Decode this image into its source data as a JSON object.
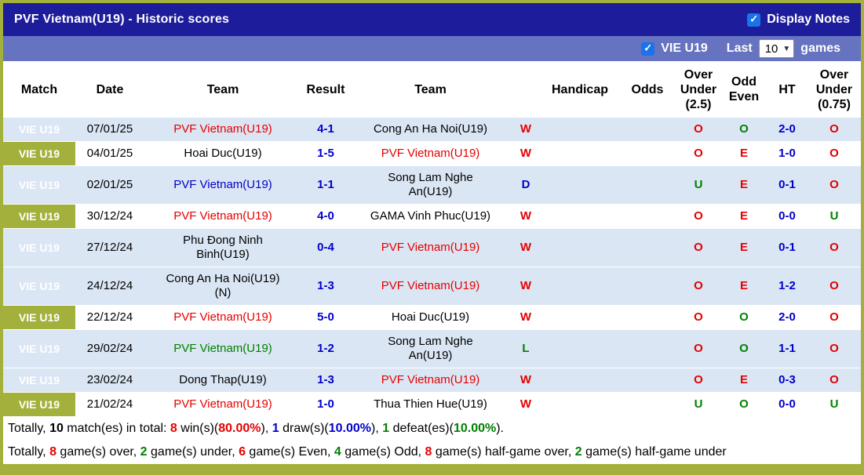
{
  "colors": {
    "frame_green": "#a3b13c",
    "title_bar_bg": "#1d1d9b",
    "filter_bar_bg": "#6673c0",
    "row_shade": "#dbe6f4",
    "match_cell_green": "#a3b13c",
    "result_red": "#e60000",
    "result_blue": "#0000cc",
    "result_green": "#008000",
    "checkbox_blue": "#1a73e8"
  },
  "title_bar": {
    "title": "PVF Vietnam(U19) - Historic scores",
    "display_notes_label": "Display Notes",
    "display_notes_checked": true
  },
  "filter_bar": {
    "league_label": "VIE U19",
    "league_checked": true,
    "last_label": "Last",
    "games_count": "10",
    "games_label": "games"
  },
  "table": {
    "headers": [
      "Match",
      "Date",
      "Team",
      "Result",
      "Team",
      "",
      "Handicap",
      "Odds",
      "Over\nUnder\n(2.5)",
      "Odd\nEven",
      "HT",
      "Over\nUnder\n(0.75)"
    ],
    "rows": [
      {
        "league": "VIE U19",
        "date": "07/01/25",
        "home": "PVF Vietnam(U19)",
        "home_color": "red",
        "result": "4-1",
        "away": "Cong An Ha Noi(U19)",
        "away_color": "black",
        "wdl": "W",
        "wdl_color": "red",
        "handicap": "",
        "odds": "",
        "ou25": "O",
        "ou25_color": "red",
        "oe": "O",
        "oe_color": "green",
        "ht": "2-0",
        "ou075": "O",
        "ou075_color": "red",
        "shaded": true
      },
      {
        "league": "VIE U19",
        "date": "04/01/25",
        "home": "Hoai Duc(U19)",
        "home_color": "black",
        "result": "1-5",
        "away": "PVF Vietnam(U19)",
        "away_color": "red",
        "wdl": "W",
        "wdl_color": "red",
        "handicap": "",
        "odds": "",
        "ou25": "O",
        "ou25_color": "red",
        "oe": "E",
        "oe_color": "red",
        "ht": "1-0",
        "ou075": "O",
        "ou075_color": "red",
        "shaded": false
      },
      {
        "league": "VIE U19",
        "date": "02/01/25",
        "home": "PVF Vietnam(U19)",
        "home_color": "blue",
        "result": "1-1",
        "away": "Song Lam Nghe An(U19)",
        "away_color": "black",
        "wdl": "D",
        "wdl_color": "blue",
        "handicap": "",
        "odds": "",
        "ou25": "U",
        "ou25_color": "green",
        "oe": "E",
        "oe_color": "red",
        "ht": "0-1",
        "ou075": "O",
        "ou075_color": "red",
        "shaded": true
      },
      {
        "league": "VIE U19",
        "date": "30/12/24",
        "home": "PVF Vietnam(U19)",
        "home_color": "red",
        "result": "4-0",
        "away": "GAMA Vinh Phuc(U19)",
        "away_color": "black",
        "wdl": "W",
        "wdl_color": "red",
        "handicap": "",
        "odds": "",
        "ou25": "O",
        "ou25_color": "red",
        "oe": "E",
        "oe_color": "red",
        "ht": "0-0",
        "ou075": "U",
        "ou075_color": "green",
        "shaded": false
      },
      {
        "league": "VIE U19",
        "date": "27/12/24",
        "home": "Phu Đong Ninh Binh(U19)",
        "home_color": "black",
        "result": "0-4",
        "away": "PVF Vietnam(U19)",
        "away_color": "red",
        "wdl": "W",
        "wdl_color": "red",
        "handicap": "",
        "odds": "",
        "ou25": "O",
        "ou25_color": "red",
        "oe": "E",
        "oe_color": "red",
        "ht": "0-1",
        "ou075": "O",
        "ou075_color": "red",
        "shaded": true
      },
      {
        "league": "VIE U19",
        "date": "24/12/24",
        "home": "Cong An Ha Noi(U19) (N)",
        "home_color": "black",
        "result": "1-3",
        "away": "PVF Vietnam(U19)",
        "away_color": "red",
        "wdl": "W",
        "wdl_color": "red",
        "handicap": "",
        "odds": "",
        "ou25": "O",
        "ou25_color": "red",
        "oe": "E",
        "oe_color": "red",
        "ht": "1-2",
        "ou075": "O",
        "ou075_color": "red",
        "shaded": true
      },
      {
        "league": "VIE U19",
        "date": "22/12/24",
        "home": "PVF Vietnam(U19)",
        "home_color": "red",
        "result": "5-0",
        "away": "Hoai Duc(U19)",
        "away_color": "black",
        "wdl": "W",
        "wdl_color": "red",
        "handicap": "",
        "odds": "",
        "ou25": "O",
        "ou25_color": "red",
        "oe": "O",
        "oe_color": "green",
        "ht": "2-0",
        "ou075": "O",
        "ou075_color": "red",
        "shaded": false
      },
      {
        "league": "VIE U19",
        "date": "29/02/24",
        "home": "PVF Vietnam(U19)",
        "home_color": "green",
        "result": "1-2",
        "away": "Song Lam Nghe An(U19)",
        "away_color": "black",
        "wdl": "L",
        "wdl_color": "green",
        "handicap": "",
        "odds": "",
        "ou25": "O",
        "ou25_color": "red",
        "oe": "O",
        "oe_color": "green",
        "ht": "1-1",
        "ou075": "O",
        "ou075_color": "red",
        "shaded": true
      },
      {
        "league": "VIE U19",
        "date": "23/02/24",
        "home": "Dong Thap(U19)",
        "home_color": "black",
        "result": "1-3",
        "away": "PVF Vietnam(U19)",
        "away_color": "red",
        "wdl": "W",
        "wdl_color": "red",
        "handicap": "",
        "odds": "",
        "ou25": "O",
        "ou25_color": "red",
        "oe": "E",
        "oe_color": "red",
        "ht": "0-3",
        "ou075": "O",
        "ou075_color": "red",
        "shaded": true
      },
      {
        "league": "VIE U19",
        "date": "21/02/24",
        "home": "PVF Vietnam(U19)",
        "home_color": "red",
        "result": "1-0",
        "away": "Thua Thien Hue(U19)",
        "away_color": "black",
        "wdl": "W",
        "wdl_color": "red",
        "handicap": "",
        "odds": "",
        "ou25": "U",
        "ou25_color": "green",
        "oe": "O",
        "oe_color": "green",
        "ht": "0-0",
        "ou075": "U",
        "ou075_color": "green",
        "shaded": false
      }
    ]
  },
  "summary": {
    "line1": [
      {
        "text": "Totally, ",
        "color": "black",
        "bold": false
      },
      {
        "text": "10",
        "color": "black",
        "bold": true
      },
      {
        "text": " match(es) in total: ",
        "color": "black",
        "bold": false
      },
      {
        "text": "8",
        "color": "red",
        "bold": true
      },
      {
        "text": " win(s)(",
        "color": "black",
        "bold": false
      },
      {
        "text": "80.00%",
        "color": "red",
        "bold": true
      },
      {
        "text": "), ",
        "color": "black",
        "bold": false
      },
      {
        "text": "1",
        "color": "blue",
        "bold": true
      },
      {
        "text": " draw(s)(",
        "color": "black",
        "bold": false
      },
      {
        "text": "10.00%",
        "color": "blue",
        "bold": true
      },
      {
        "text": "), ",
        "color": "black",
        "bold": false
      },
      {
        "text": "1",
        "color": "green",
        "bold": true
      },
      {
        "text": " defeat(es)(",
        "color": "black",
        "bold": false
      },
      {
        "text": "10.00%",
        "color": "green",
        "bold": true
      },
      {
        "text": ").",
        "color": "black",
        "bold": false
      }
    ],
    "line2": [
      {
        "text": "Totally, ",
        "color": "black",
        "bold": false
      },
      {
        "text": "8",
        "color": "red",
        "bold": true
      },
      {
        "text": " game(s) over, ",
        "color": "black",
        "bold": false
      },
      {
        "text": "2",
        "color": "green",
        "bold": true
      },
      {
        "text": " game(s) under, ",
        "color": "black",
        "bold": false
      },
      {
        "text": "6",
        "color": "red",
        "bold": true
      },
      {
        "text": " game(s) Even, ",
        "color": "black",
        "bold": false
      },
      {
        "text": "4",
        "color": "green",
        "bold": true
      },
      {
        "text": " game(s) Odd, ",
        "color": "black",
        "bold": false
      },
      {
        "text": "8",
        "color": "red",
        "bold": true
      },
      {
        "text": " game(s) half-game over, ",
        "color": "black",
        "bold": false
      },
      {
        "text": "2",
        "color": "green",
        "bold": true
      },
      {
        "text": " game(s) half-game under",
        "color": "black",
        "bold": false
      }
    ]
  }
}
